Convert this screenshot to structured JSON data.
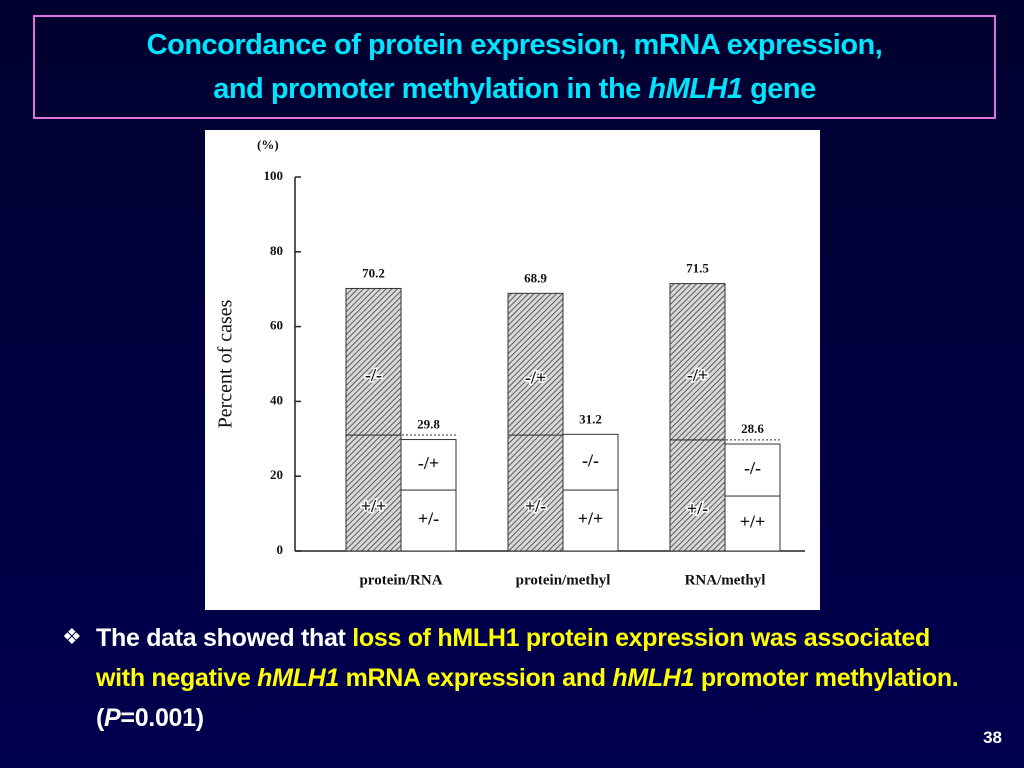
{
  "slide": {
    "title": {
      "line1": "Concordance of protein expression, mRNA expression,",
      "line2": [
        "and promoter methylation in the ",
        "hMLH1",
        " gene"
      ]
    },
    "bullet_symbol": "❖",
    "bullet": [
      "The data showed that ",
      "loss of hMLH1 protein expression was associated with negative ",
      "hMLH1",
      " mRNA expression and ",
      "hMLH1",
      " promoter methylation.",
      " (",
      "P",
      "=0.001)"
    ],
    "page_number": "38"
  },
  "chart_data": {
    "type": "grouped_stacked_bar",
    "unit_label": "(%)",
    "y_label": "Percent of cases",
    "categories": [
      "protein/RNA",
      "protein/methyl",
      "RNA/methyl"
    ],
    "groups": [
      {
        "bars": [
          {
            "total": 70.2,
            "segments": [
              {
                "label": "+/+",
                "value": 31
              },
              {
                "label": "-/-",
                "value": 39.2
              }
            ]
          },
          {
            "total": 29.8,
            "segments": [
              {
                "label": "+/-",
                "value": 16.3
              },
              {
                "label": "-/+",
                "value": 13.5
              }
            ]
          }
        ]
      },
      {
        "bars": [
          {
            "total": 68.9,
            "segments": [
              {
                "label": "+/-",
                "value": 31
              },
              {
                "label": "-/+",
                "value": 37.9
              }
            ]
          },
          {
            "total": 31.2,
            "segments": [
              {
                "label": "+/+",
                "value": 16.3
              },
              {
                "label": "-/-",
                "value": 14.9
              }
            ]
          }
        ]
      },
      {
        "bars": [
          {
            "total": 71.5,
            "segments": [
              {
                "label": "+/-",
                "value": 29.7
              },
              {
                "label": "-/+",
                "value": 41.8
              }
            ]
          },
          {
            "total": 28.6,
            "segments": [
              {
                "label": "+/+",
                "value": 14.7
              },
              {
                "label": "-/-",
                "value": 13.9
              }
            ]
          }
        ]
      }
    ],
    "ylim": [
      0,
      100
    ],
    "yticks": [
      0,
      20,
      40,
      60,
      80,
      100
    ]
  }
}
